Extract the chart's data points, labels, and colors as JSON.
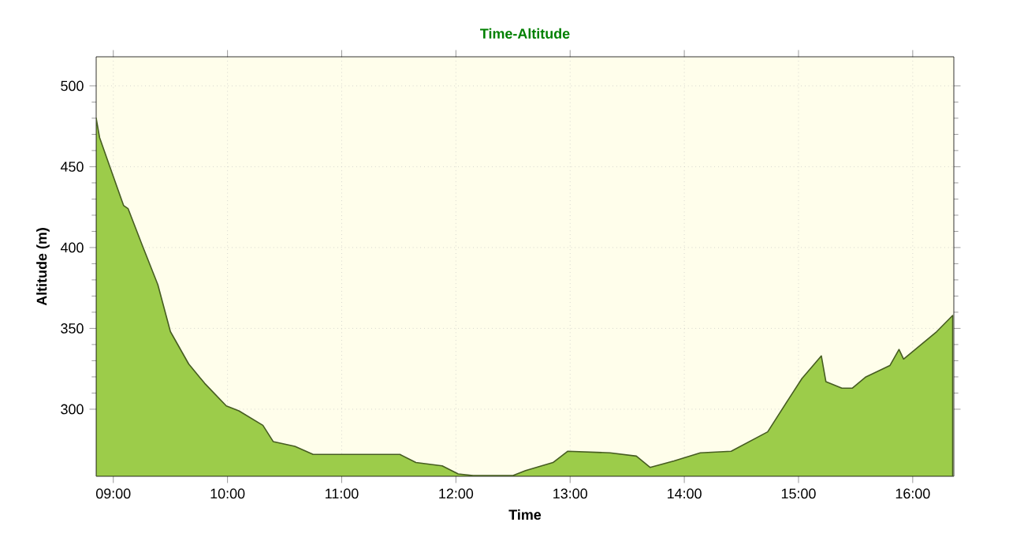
{
  "chart_data": {
    "type": "area",
    "title": "Time-Altitude",
    "xlabel": "Time",
    "ylabel": "Altitude (m)",
    "series": [
      {
        "color": "#9ccc4a",
        "x": [
          8.85,
          8.88,
          8.97,
          9.09,
          9.13,
          9.25,
          9.39,
          9.5,
          9.66,
          9.8,
          9.99,
          10.1,
          10.31,
          10.4,
          10.59,
          10.75,
          11.51,
          11.65,
          11.88,
          12.02,
          12.15,
          12.5,
          12.61,
          12.85,
          12.98,
          13.35,
          13.58,
          13.7,
          13.91,
          14.14,
          14.41,
          14.73,
          14.92,
          15.03,
          15.2,
          15.24,
          15.38,
          15.47,
          15.59,
          15.8,
          15.88,
          15.92,
          16.21,
          16.35
        ],
        "values": [
          480,
          468,
          450,
          426,
          424,
          402,
          377,
          348,
          328,
          316,
          302,
          299,
          290,
          280,
          277,
          272,
          272,
          267,
          265,
          260,
          259,
          259,
          262,
          267,
          274,
          273,
          271,
          264,
          268,
          273,
          274,
          286,
          307,
          319,
          333,
          317,
          313,
          313,
          320,
          327,
          337,
          331,
          348,
          358
        ]
      }
    ],
    "xlim": [
      8.85,
      16.36
    ],
    "ylim": [
      258.5,
      518
    ],
    "xticks": [
      {
        "value": 9,
        "label": "09:00"
      },
      {
        "value": 10,
        "label": "10:00"
      },
      {
        "value": 11,
        "label": "11:00"
      },
      {
        "value": 12,
        "label": "12:00"
      },
      {
        "value": 13,
        "label": "13:00"
      },
      {
        "value": 14,
        "label": "14:00"
      },
      {
        "value": 15,
        "label": "15:00"
      },
      {
        "value": 16,
        "label": "16:00"
      }
    ],
    "yticks": [
      300,
      350,
      400,
      450,
      500
    ],
    "grid": true
  }
}
